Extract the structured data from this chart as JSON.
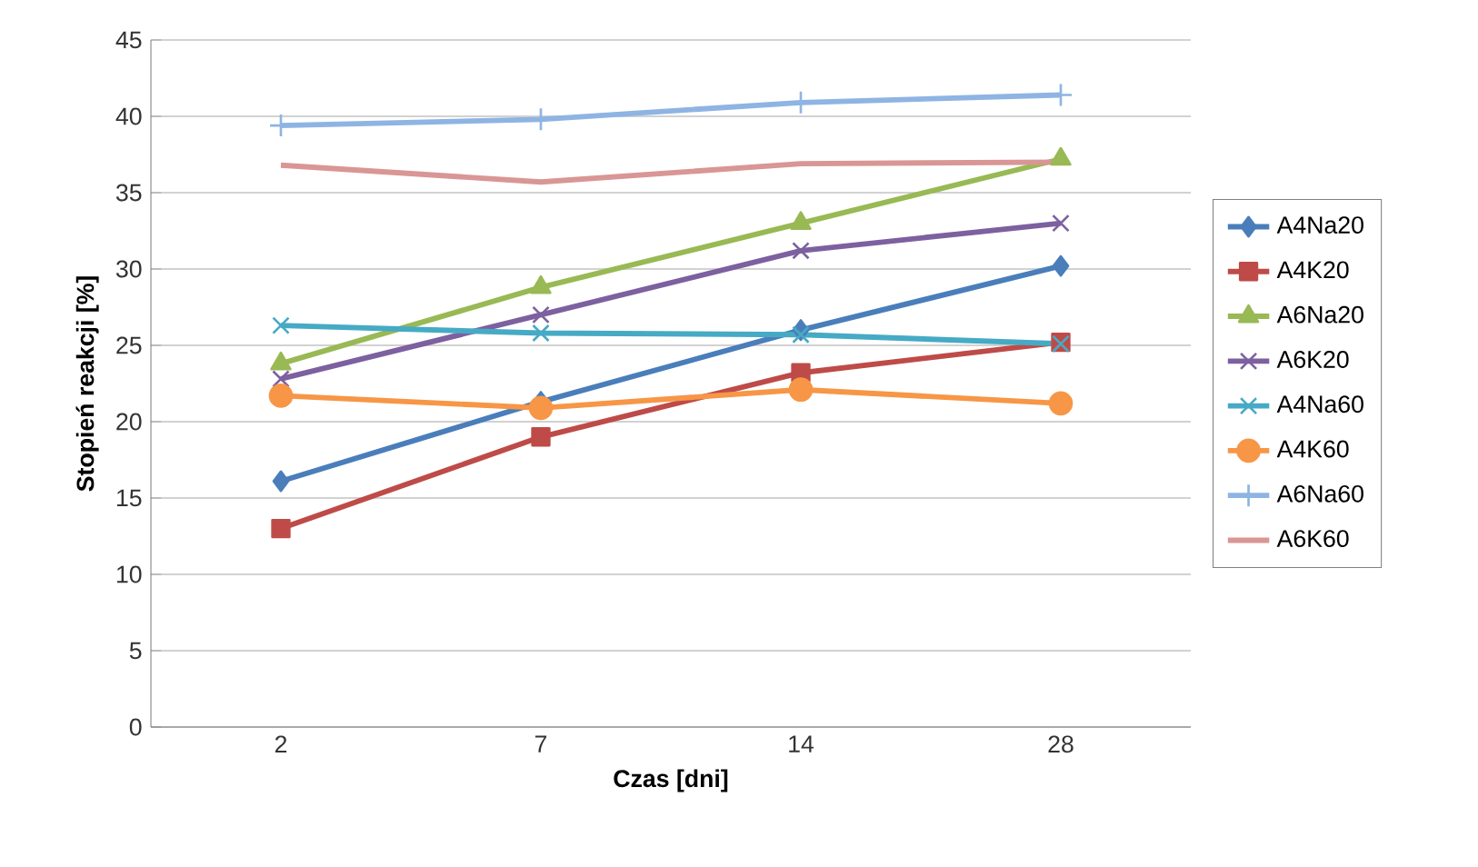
{
  "chart_data": {
    "type": "line",
    "xlabel": "Czas [dni]",
    "ylabel": "Stopień reakcji [%]",
    "categories": [
      "2",
      "7",
      "14",
      "28"
    ],
    "ylim": [
      0,
      45
    ],
    "yticks": [
      0,
      5,
      10,
      15,
      20,
      25,
      30,
      35,
      40,
      45
    ],
    "grid": "y",
    "legend": "right",
    "series": [
      {
        "name": "A4Na20",
        "color": "#4a7ebb",
        "marker": "diamond",
        "values": [
          16.1,
          21.3,
          26.0,
          30.2
        ]
      },
      {
        "name": "A4K20",
        "color": "#be4b48",
        "marker": "square",
        "values": [
          13.0,
          19.0,
          23.2,
          25.2
        ]
      },
      {
        "name": "A6Na20",
        "color": "#98b954",
        "marker": "triangle",
        "values": [
          23.8,
          28.8,
          33.0,
          37.2
        ]
      },
      {
        "name": "A6K20",
        "color": "#7d60a0",
        "marker": "cross",
        "values": [
          22.8,
          27.0,
          31.2,
          33.0
        ]
      },
      {
        "name": "A4Na60",
        "color": "#46aac5",
        "marker": "cross",
        "values": [
          26.3,
          25.8,
          25.7,
          25.1
        ]
      },
      {
        "name": "A4K60",
        "color": "#f79646",
        "marker": "circle",
        "values": [
          21.7,
          20.9,
          22.1,
          21.2
        ]
      },
      {
        "name": "A6Na60",
        "color": "#8eb4e3",
        "marker": "plus",
        "values": [
          39.4,
          39.8,
          40.9,
          41.4
        ]
      },
      {
        "name": "A6K60",
        "color": "#d99694",
        "marker": "none",
        "values": [
          36.8,
          35.7,
          36.9,
          37.0
        ]
      }
    ]
  }
}
